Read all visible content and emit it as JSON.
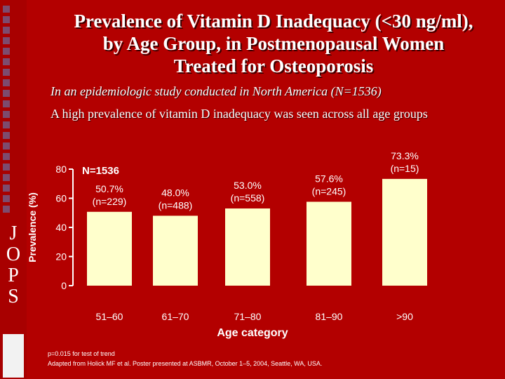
{
  "slide": {
    "title_line1": "Prevalence of Vitamin D Inadequacy (<30 ng/ml),",
    "title_line2": "by Age Group, in Postmenopausal Women",
    "title_line3": "Treated for Osteoporosis",
    "subtitle": "In an epidemiologic study conducted in North America (N=1536)",
    "note": "A high prevalence of vitamin D inadequacy was seen across all age groups",
    "side_letters": [
      "J",
      "O",
      "P",
      "S"
    ],
    "footnote1": "p=0.015 for test of trend",
    "footnote2": "Adapted from Holick MF et al. Poster presented at ASBMR, October 1–5, 2004, Seattle, WA, USA."
  },
  "colors": {
    "background": "#b30000",
    "bar_fill": "#ffffcc",
    "text": "#ffffff"
  },
  "chart_data": {
    "type": "bar",
    "categories": [
      "51–60",
      "61–70",
      "71–80",
      "81–90",
      ">90"
    ],
    "values": [
      50.7,
      48.0,
      53.0,
      57.6,
      73.3
    ],
    "data_labels": [
      [
        "50.7%",
        "(n=229)"
      ],
      [
        "48.0%",
        "(n=488)"
      ],
      [
        "53.0%",
        "(n=558)"
      ],
      [
        "57.6%",
        "(n=245)"
      ],
      [
        "73.3%",
        "(n=15)"
      ]
    ],
    "annotation": "N=1536",
    "xlabel": "Age category",
    "ylabel": "Prevalence (%)",
    "ylim": [
      0,
      80
    ],
    "yticks": [
      0,
      20,
      40,
      60,
      80
    ],
    "grid": false
  }
}
